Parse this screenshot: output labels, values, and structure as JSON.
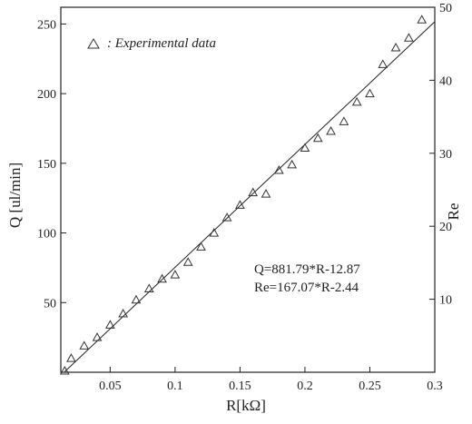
{
  "chart_data": {
    "type": "scatter",
    "xlabel": "R[kΩ]",
    "ylabel": "Q [ul/min]",
    "y2label": "Re",
    "xlim": [
      0.012,
      0.3
    ],
    "ylim": [
      0,
      262
    ],
    "y2lim": [
      0,
      50
    ],
    "x_ticks": [
      0.05,
      0.1,
      0.15,
      0.2,
      0.25,
      0.3
    ],
    "x_tick_labels": [
      "0.05",
      "0.1",
      "0.15",
      "0.2",
      "0.25",
      "0.3"
    ],
    "y_ticks": [
      50,
      100,
      150,
      200,
      250
    ],
    "y2_ticks": [
      10,
      20,
      30,
      40,
      50
    ],
    "grid": false,
    "legend_position": "top-left",
    "series": [
      {
        "name": ": Experimental data",
        "marker": "triangle",
        "x": [
          0.015,
          0.02,
          0.03,
          0.04,
          0.05,
          0.06,
          0.07,
          0.08,
          0.09,
          0.1,
          0.11,
          0.12,
          0.13,
          0.14,
          0.15,
          0.16,
          0.17,
          0.18,
          0.19,
          0.2,
          0.21,
          0.22,
          0.23,
          0.24,
          0.25,
          0.26,
          0.27,
          0.28,
          0.29
        ],
        "values": [
          1,
          10,
          19,
          25,
          34,
          42,
          52,
          60,
          67,
          70,
          79,
          90,
          100,
          111,
          120,
          129,
          128,
          145,
          149,
          161,
          168,
          173,
          180,
          194,
          200,
          221,
          233,
          240,
          253
        ]
      }
    ],
    "fit_line": {
      "x": [
        0.015,
        0.3
      ],
      "y": [
        0.4,
        251.67
      ]
    },
    "annotations": [
      "Q=881.79*R-12.87",
      "Re=167.07*R-2.44"
    ]
  }
}
